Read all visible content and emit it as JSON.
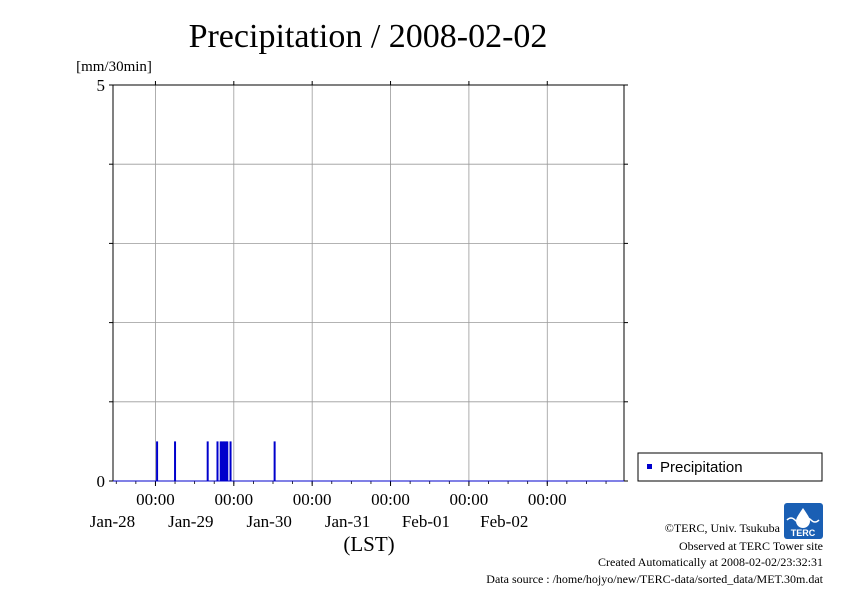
{
  "chart_data": {
    "type": "bar",
    "title": "Precipitation / 2008-02-02",
    "ylabel": "[mm/30min]",
    "xlabel": "(LST)",
    "ylim": [
      0,
      5
    ],
    "yticks": [
      "0",
      "5"
    ],
    "xlim": [
      "2008-01-27T11:00",
      "2008-02-02T23:30"
    ],
    "x_tick_labels": [
      {
        "time": "00:00",
        "date": "Jan-28"
      },
      {
        "time": "00:00",
        "date": "Jan-29"
      },
      {
        "time": "00:00",
        "date": "Jan-30"
      },
      {
        "time": "00:00",
        "date": "Jan-31"
      },
      {
        "time": "00:00",
        "date": "Feb-01"
      },
      {
        "time": "00:00",
        "date": "Feb-02"
      }
    ],
    "grid": true,
    "legend_position": "bottom-right outside",
    "series": [
      {
        "name": "Precipitation",
        "color": "#0000cc",
        "points": [
          {
            "x": "2008-01-28T00:30",
            "y": 0.5
          },
          {
            "x": "2008-01-28T06:00",
            "y": 0.5
          },
          {
            "x": "2008-01-28T16:00",
            "y": 0.5
          },
          {
            "x": "2008-01-28T19:00",
            "y": 0.5
          },
          {
            "x": "2008-01-28T20:00",
            "y": 0.5
          },
          {
            "x": "2008-01-28T20:30",
            "y": 0.5
          },
          {
            "x": "2008-01-28T21:00",
            "y": 0.5
          },
          {
            "x": "2008-01-28T21:30",
            "y": 0.5
          },
          {
            "x": "2008-01-28T22:00",
            "y": 0.5
          },
          {
            "x": "2008-01-28T23:00",
            "y": 0.5
          },
          {
            "x": "2008-01-29T12:30",
            "y": 0.5
          }
        ]
      }
    ]
  },
  "footer": {
    "copyright": "©TERC, Univ. Tsukuba",
    "observed": "Observed at TERC Tower site",
    "created": "Created Automatically at 2008-02-02/23:32:31",
    "source": "Data source : /home/hojyo/new/TERC-data/sorted_data/MET.30m.dat"
  },
  "logo": {
    "text": "TERC",
    "color": "#1a5fb4"
  }
}
